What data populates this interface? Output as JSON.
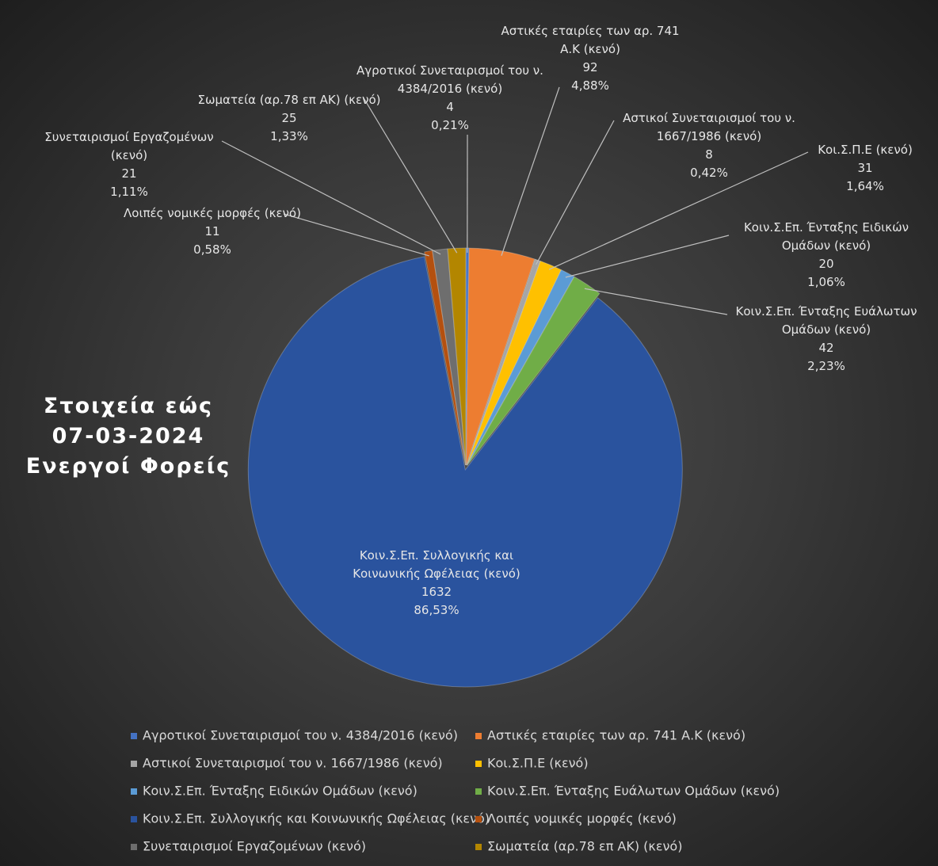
{
  "chart_data": {
    "type": "pie",
    "title_lines": [
      "Στοιχεία εώς",
      "07-03-2024",
      "Ενεργοί Φορείς"
    ],
    "categories": [
      "Αγροτικοί Συνεταιρισμοί του ν. 4384/2016 (κενό)",
      "Αστικές εταιρίες των αρ. 741 Α.Κ (κενό)",
      "Αστικοί Συνεταιρισμοί του ν. 1667/1986 (κενό)",
      "Κοι.Σ.Π.Ε (κενό)",
      "Κοιν.Σ.Επ. Ένταξης Ειδικών Ομάδων (κενό)",
      "Κοιν.Σ.Επ. Ένταξης Ευάλωτων Ομάδων (κενό)",
      "Κοιν.Σ.Επ. Συλλογικής και Κοινωνικής Ωφέλειας (κενό)",
      "Λοιπές νομικές μορφές (κενό)",
      "Συνεταιρισμοί Εργαζομένων (κενό)",
      "Σωματεία (αρ.78 επ ΑΚ) (κενό)"
    ],
    "values": [
      4,
      92,
      8,
      31,
      20,
      42,
      1632,
      11,
      21,
      25
    ],
    "percent_labels": [
      "0,21%",
      "4,88%",
      "0,42%",
      "1,64%",
      "1,06%",
      "2,23%",
      "86,53%",
      "0,58%",
      "1,11%",
      "1,33%"
    ],
    "colors": [
      "#4472c4",
      "#ed7d31",
      "#a5a5a5",
      "#ffc000",
      "#5b9bd5",
      "#70ad47",
      "#2a539e",
      "#b4500f",
      "#6e6e6e",
      "#b38600"
    ],
    "legend": "bottom"
  }
}
